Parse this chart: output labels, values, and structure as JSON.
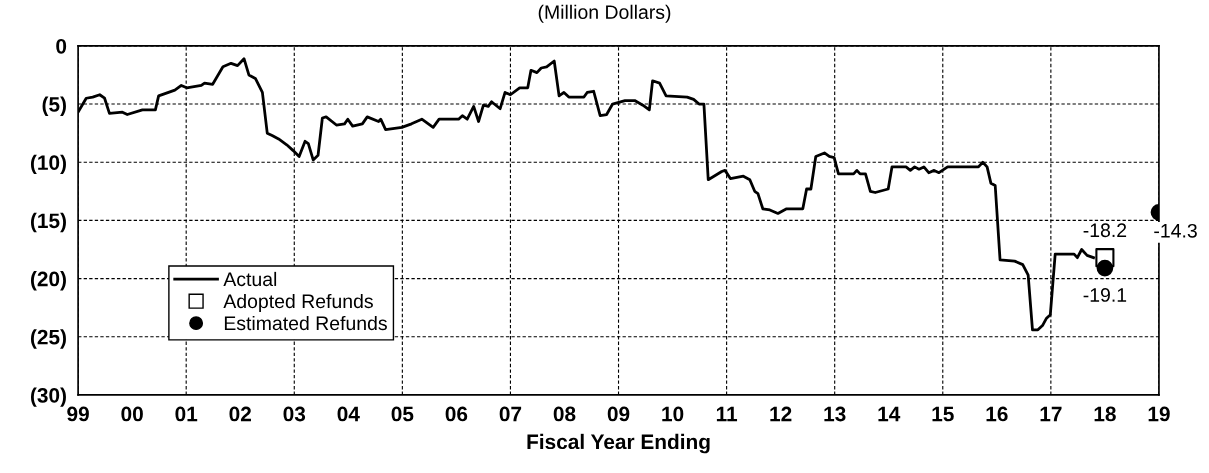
{
  "chart_data": {
    "type": "line",
    "subtitle": "(Million Dollars)",
    "xlabel": "Fiscal Year Ending",
    "xlim": [
      1999,
      2019
    ],
    "ylim": [
      -30,
      0
    ],
    "xticks": [
      {
        "value": 1999,
        "label": "99"
      },
      {
        "value": 2000,
        "label": "00"
      },
      {
        "value": 2001,
        "label": "01"
      },
      {
        "value": 2002,
        "label": "02"
      },
      {
        "value": 2003,
        "label": "03"
      },
      {
        "value": 2004,
        "label": "04"
      },
      {
        "value": 2005,
        "label": "05"
      },
      {
        "value": 2006,
        "label": "06"
      },
      {
        "value": 2007,
        "label": "07"
      },
      {
        "value": 2008,
        "label": "08"
      },
      {
        "value": 2009,
        "label": "09"
      },
      {
        "value": 2010,
        "label": "10"
      },
      {
        "value": 2011,
        "label": "11"
      },
      {
        "value": 2012,
        "label": "12"
      },
      {
        "value": 2013,
        "label": "13"
      },
      {
        "value": 2014,
        "label": "14"
      },
      {
        "value": 2015,
        "label": "15"
      },
      {
        "value": 2016,
        "label": "16"
      },
      {
        "value": 2017,
        "label": "17"
      },
      {
        "value": 2018,
        "label": "18"
      },
      {
        "value": 2019,
        "label": "19"
      }
    ],
    "yticks": [
      {
        "value": -30,
        "label": "(30)"
      },
      {
        "value": -25,
        "label": "(25)"
      },
      {
        "value": -20,
        "label": "(20)"
      },
      {
        "value": -15,
        "label": "(15)"
      },
      {
        "value": -10,
        "label": "(10)"
      },
      {
        "value": -5,
        "label": "(5)"
      },
      0
    ],
    "grid": true,
    "legend": "bottom left",
    "series": [
      {
        "name": "Actual",
        "color": "#000000",
        "marker": "none",
        "line_style": "solid",
        "x": [
          1999,
          1999.15,
          1999.27,
          1999.4,
          1999.49,
          1999.58,
          1999.82,
          1999.91,
          2000.19,
          2000.43,
          2000.49,
          2000.79,
          2000.91,
          2001.01,
          2001.28,
          2001.34,
          2001.49,
          2001.68,
          2001.83,
          2001.95,
          2002.07,
          2002.16,
          2002.28,
          2002.41,
          2002.5,
          2002.59,
          2002.71,
          2002.86,
          2002.98,
          2003.09,
          2003.2,
          2003.26,
          2003.35,
          2003.44,
          2003.52,
          2003.59,
          2003.78,
          2003.93,
          2003.99,
          2004.08,
          2004.26,
          2004.35,
          2004.56,
          2004.6,
          2004.69,
          2004.99,
          2005.17,
          2005.36,
          2005.57,
          2005.68,
          2006.04,
          2006.11,
          2006.2,
          2006.32,
          2006.41,
          2006.5,
          2006.59,
          2006.65,
          2006.81,
          2006.9,
          2007.0,
          2007.17,
          2007.32,
          2007.38,
          2007.49,
          2007.57,
          2007.67,
          2007.81,
          2007.9,
          2007.99,
          2008.08,
          2008.36,
          2008.42,
          2008.54,
          2008.66,
          2008.78,
          2008.89,
          2009.12,
          2009.3,
          2009.45,
          2009.57,
          2009.63,
          2009.76,
          2009.88,
          2010.27,
          2010.39,
          2010.49,
          2010.58,
          2010.66,
          2010.91,
          2010.97,
          2011.07,
          2011.31,
          2011.43,
          2011.52,
          2011.58,
          2011.67,
          2011.8,
          2011.95,
          2012.11,
          2012.41,
          2012.48,
          2012.56,
          2012.65,
          2012.81,
          2012.9,
          2012.99,
          2013.07,
          2013.35,
          2013.41,
          2013.47,
          2013.57,
          2013.66,
          2013.75,
          2013.99,
          2014.06,
          2014.32,
          2014.4,
          2014.48,
          2014.56,
          2014.65,
          2014.74,
          2014.84,
          2014.93,
          2015.09,
          2015.66,
          2015.74,
          2015.82,
          2015.89,
          2015.97,
          2016.06,
          2016.33,
          2016.48,
          2016.58,
          2016.66,
          2016.76,
          2016.85,
          2016.92,
          2016.99,
          2017.08,
          2017.43,
          2017.49,
          2017.57,
          2017.67,
          2017.79
        ],
        "values": [
          -5.7,
          -4.5,
          -4.4,
          -4.2,
          -4.5,
          -5.8,
          -5.7,
          -5.9,
          -5.5,
          -5.5,
          -4.3,
          -3.8,
          -3.4,
          -3.6,
          -3.4,
          -3.2,
          -3.3,
          -1.8,
          -1.5,
          -1.7,
          -1.1,
          -2.5,
          -2.8,
          -4.0,
          -7.5,
          -7.7,
          -8.0,
          -8.5,
          -9.0,
          -9.5,
          -8.2,
          -8.4,
          -9.8,
          -9.4,
          -6.2,
          -6.1,
          -6.8,
          -6.7,
          -6.3,
          -6.9,
          -6.7,
          -6.1,
          -6.5,
          -6.3,
          -7.2,
          -7.0,
          -6.7,
          -6.3,
          -7.0,
          -6.3,
          -6.3,
          -6.0,
          -6.3,
          -5.2,
          -6.5,
          -5.1,
          -5.2,
          -4.8,
          -5.4,
          -4.0,
          -4.2,
          -3.6,
          -3.6,
          -2.1,
          -2.3,
          -1.9,
          -1.8,
          -1.3,
          -4.3,
          -4.0,
          -4.4,
          -4.4,
          -4.0,
          -3.9,
          -6.0,
          -5.9,
          -5.0,
          -4.7,
          -4.7,
          -5.1,
          -5.5,
          -3.0,
          -3.2,
          -4.3,
          -4.4,
          -4.6,
          -5.0,
          -5.0,
          -11.5,
          -10.8,
          -10.7,
          -11.4,
          -11.2,
          -11.5,
          -12.5,
          -12.7,
          -14.0,
          -14.1,
          -14.4,
          -14.0,
          -14.0,
          -12.3,
          -12.3,
          -9.5,
          -9.2,
          -9.5,
          -9.6,
          -11.0,
          -11.0,
          -10.7,
          -11.0,
          -11.0,
          -12.5,
          -12.6,
          -12.3,
          -10.4,
          -10.4,
          -10.7,
          -10.4,
          -10.6,
          -10.4,
          -10.9,
          -10.7,
          -10.9,
          -10.4,
          -10.4,
          -10.0,
          -10.4,
          -11.8,
          -12.0,
          -18.4,
          -18.5,
          -18.8,
          -19.7,
          -24.4,
          -24.4,
          -24.0,
          -23.4,
          -23.1,
          -17.9,
          -17.9,
          -18.2,
          -17.5,
          -18.0,
          -18.2
        ]
      },
      {
        "name": "Adopted Refunds",
        "type": "scatter",
        "color": "#000000",
        "marker": "square",
        "x": [
          2018
        ],
        "values": [
          -18.2
        ],
        "value_labels": [
          "-18.2"
        ]
      },
      {
        "name": "Estimated Refunds",
        "type": "scatter",
        "color": "#000000",
        "marker": "circle",
        "x": [
          2018,
          2019
        ],
        "values": [
          -19.1,
          -14.3
        ],
        "value_labels": [
          "-19.1",
          "-14.3"
        ]
      }
    ]
  }
}
